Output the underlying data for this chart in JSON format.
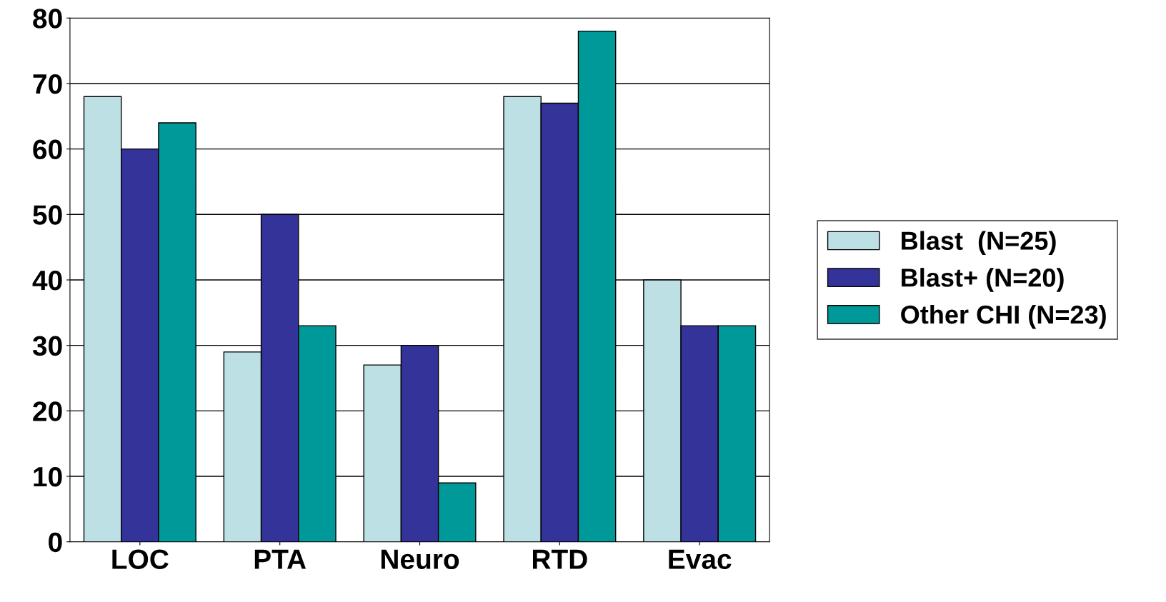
{
  "chart_data": {
    "type": "bar",
    "categories": [
      "LOC",
      "PTA",
      "Neuro",
      "RTD",
      "Evac"
    ],
    "series": [
      {
        "name": "Blast  (N=25)",
        "color": "#bce0e3",
        "values": [
          68,
          29,
          27,
          68,
          40
        ]
      },
      {
        "name": "Blast+ (N=20)",
        "color": "#333399",
        "values": [
          60,
          50,
          30,
          67,
          33
        ]
      },
      {
        "name": "Other CHI (N=23)",
        "color": "#009999",
        "values": [
          64,
          33,
          9,
          78,
          33
        ]
      }
    ],
    "ylim": [
      0,
      80
    ],
    "yticks": [
      0,
      10,
      20,
      30,
      40,
      50,
      60,
      70,
      80
    ],
    "grid": "y",
    "legend": "right"
  }
}
